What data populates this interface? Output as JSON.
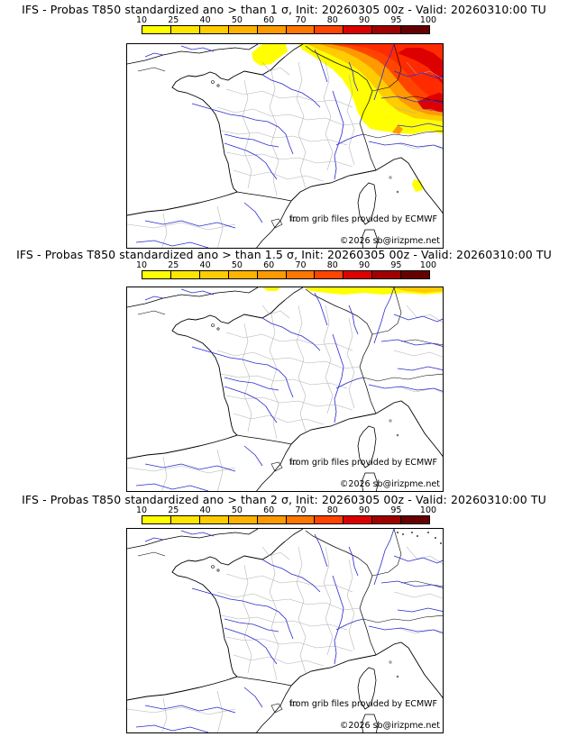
{
  "colorbar": {
    "ticks": [
      "10",
      "25",
      "40",
      "50",
      "60",
      "70",
      "80",
      "90",
      "95",
      "100"
    ],
    "colors": [
      "#ffff00",
      "#ffe600",
      "#ffcc00",
      "#ffb300",
      "#ff9900",
      "#ff7700",
      "#ff4400",
      "#dd0000",
      "#a00000",
      "#660000"
    ]
  },
  "panels": [
    {
      "title": "IFS - Probas T850  standardized ano > than 1 σ, Init: 20260305 00z - Valid: 20260310:00 TU",
      "credit_grib": "from grib files provided by ECMWF",
      "credit_copy": "©2026 sb@irizpme.net"
    },
    {
      "title": "IFS - Probas T850  standardized ano > than 1.5 σ, Init: 20260305 00z - Valid: 20260310:00 TU",
      "credit_grib": "from grib files provided by ECMWF",
      "credit_copy": "©2026 sb@irizpme.net"
    },
    {
      "title": "IFS - Probas T850  standardized ano > than 2 σ, Init: 20260305 00z - Valid: 20260310:00 TU",
      "credit_grib": "from grib files provided by ECMWF",
      "credit_copy": "©2026 sb@irizpme.net"
    }
  ],
  "colors": {
    "coast": "#000000",
    "rivers": "#2a2ad0",
    "regions": "#b0b0b0"
  }
}
